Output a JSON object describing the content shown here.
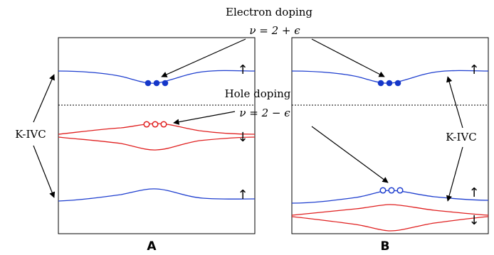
{
  "colors": {
    "band_blue": "#1f3fcf",
    "band_red": "#e02020",
    "electron_fill": "#1537c9",
    "hole_stroke_red": "#e02020",
    "hole_stroke_blue": "#1f3fcf",
    "frame": "#000000",
    "dotted_line": "#000000"
  },
  "labels": {
    "electron_doping": "Electron doping",
    "electron_nu": "ν = 2 + ϵ",
    "hole_doping": "Hole doping",
    "hole_nu": "ν = 2 − ϵ",
    "kivc_left": "K-IVC",
    "kivc_right": "K-IVC",
    "panel_a": "A",
    "panel_b": "B"
  },
  "spins": {
    "a_top": "↑",
    "a_middle": "↓",
    "a_bottom": "↑",
    "b_top": "↑",
    "b_lower_up": "↑",
    "b_lower_down": "↓"
  }
}
